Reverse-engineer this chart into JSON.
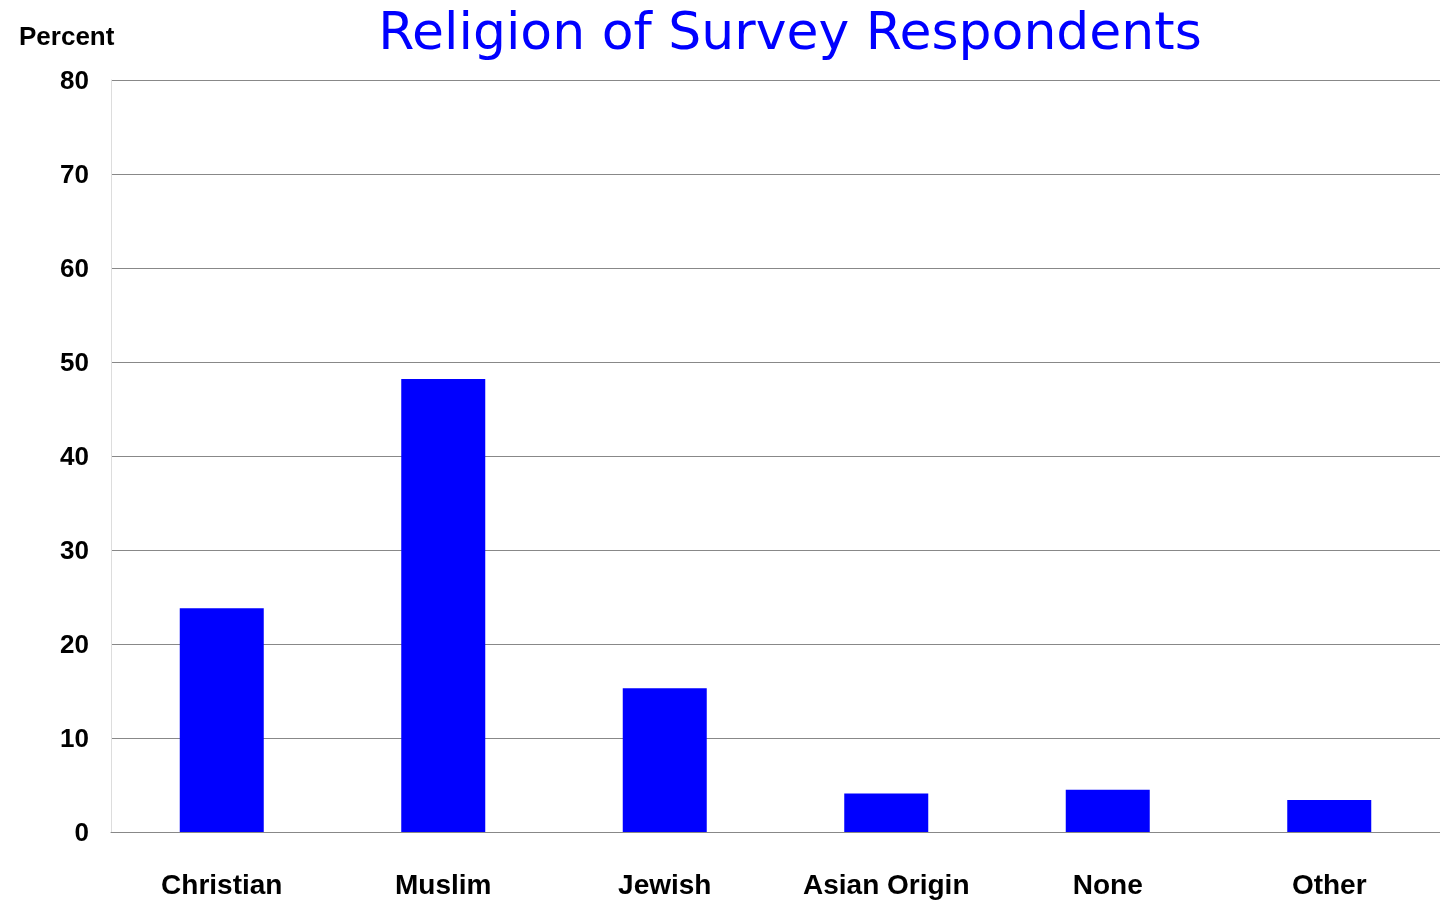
{
  "chart_data": {
    "type": "bar",
    "title": "Religion of Survey Respondents",
    "ylabel": "Percent",
    "categories": [
      "Christian",
      "Muslim",
      "Jewish",
      "Asian Origin",
      "None",
      "Other"
    ],
    "values": [
      23.8,
      48.2,
      15.3,
      4.1,
      4.5,
      3.4
    ],
    "color": "#0000ff",
    "ylim": [
      0,
      80
    ],
    "yticks": [
      0,
      10,
      20,
      30,
      40,
      50,
      60,
      70,
      80
    ],
    "grid": "y"
  }
}
